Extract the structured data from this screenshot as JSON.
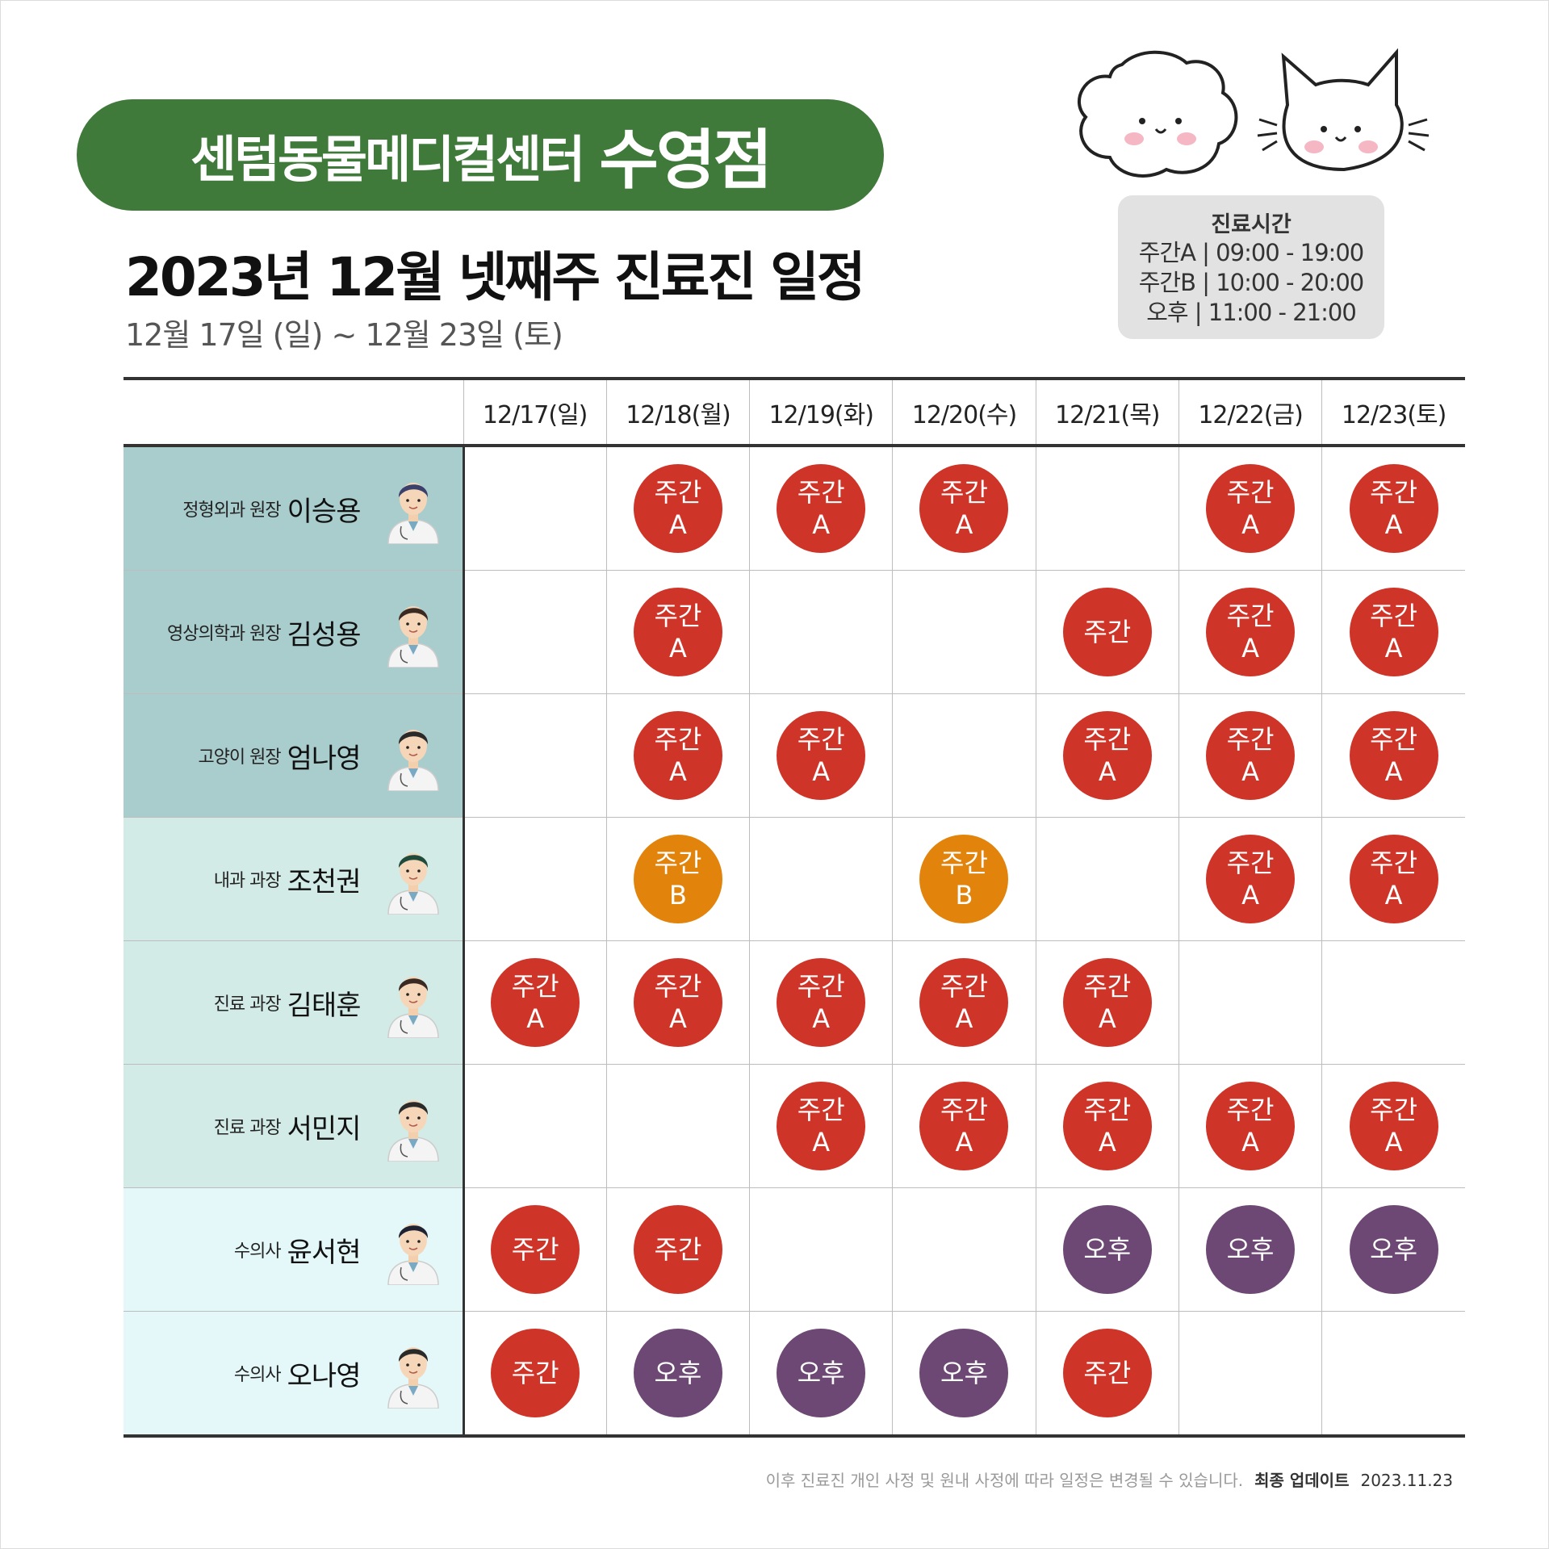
{
  "header": {
    "hospital_name": "센텀동물메디컬센터",
    "branch": "수영점",
    "title": "2023년 12월 넷째주 진료진 일정",
    "subtitle": "12월 17일 (일) ~ 12월 23일 (토)"
  },
  "hours": {
    "title": "진료시간",
    "lines": [
      "주간A | 09:00 - 19:00",
      "주간B | 10:00 - 20:00",
      "오후 | 11:00 - 21:00"
    ]
  },
  "days": [
    "12/17(일)",
    "12/18(월)",
    "12/19(화)",
    "12/20(수)",
    "12/21(목)",
    "12/22(금)",
    "12/23(토)"
  ],
  "doctors": [
    {
      "role": "정형외과 원장",
      "name": "이승용",
      "group": 1,
      "hair": "#3b3f6b",
      "schedule": [
        "",
        "주간A",
        "주간A",
        "주간A",
        "",
        "주간A",
        "주간A"
      ]
    },
    {
      "role": "영상의학과 원장",
      "name": "김성용",
      "group": 1,
      "hair": "#3a2a22",
      "schedule": [
        "",
        "주간A",
        "",
        "",
        "주간",
        "주간A",
        "주간A"
      ]
    },
    {
      "role": "고양이 원장",
      "name": "엄나영",
      "group": 1,
      "hair": "#2a2a2a",
      "schedule": [
        "",
        "주간A",
        "주간A",
        "",
        "주간A",
        "주간A",
        "주간A"
      ]
    },
    {
      "role": "내과 과장",
      "name": "조천권",
      "group": 2,
      "hair": "#1f4b3a",
      "schedule": [
        "",
        "주간B",
        "",
        "주간B",
        "",
        "주간A",
        "주간A"
      ]
    },
    {
      "role": "진료 과장",
      "name": "김태훈",
      "group": 2,
      "hair": "#3a2a22",
      "schedule": [
        "주간A",
        "주간A",
        "주간A",
        "주간A",
        "주간A",
        "",
        ""
      ]
    },
    {
      "role": "진료 과장",
      "name": "서민지",
      "group": 2,
      "hair": "#2a2a2a",
      "schedule": [
        "",
        "",
        "주간A",
        "주간A",
        "주간A",
        "주간A",
        "주간A"
      ]
    },
    {
      "role": "수의사",
      "name": "윤서현",
      "group": 3,
      "hair": "#1e2233",
      "schedule": [
        "주간",
        "주간",
        "",
        "",
        "오후",
        "오후",
        "오후"
      ]
    },
    {
      "role": "수의사",
      "name": "오나영",
      "group": 3,
      "hair": "#2a2a2a",
      "schedule": [
        "주간",
        "오후",
        "오후",
        "오후",
        "주간",
        "",
        ""
      ]
    }
  ],
  "shift_colors": {
    "주간A": "#cf3428",
    "주간": "#cf3428",
    "주간B": "#e2840c",
    "오후": "#6e4874"
  },
  "footer": {
    "note": "이후 진료진 개인 사정 및 원내 사정에 따라 일정은 변경될 수 있습니다.",
    "update_label": "최종 업데이트",
    "update_date": "2023.11.23"
  }
}
